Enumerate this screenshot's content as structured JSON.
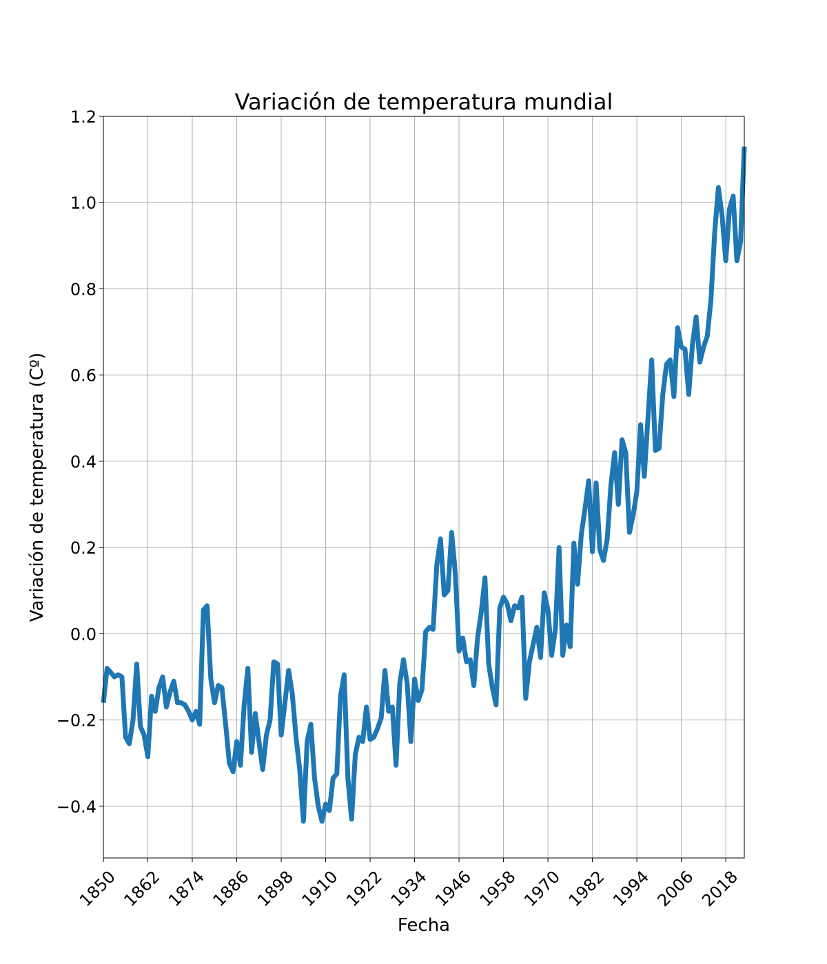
{
  "chart_data": {
    "type": "line",
    "title": "Variación de temperatura mundial",
    "xlabel": "Fecha",
    "ylabel": "Variación de temperatura (Cº)",
    "xlim": [
      1850,
      2023
    ],
    "ylim": [
      -0.52,
      1.2
    ],
    "grid": true,
    "legend": "none",
    "colors": {
      "line": "#1f77b4",
      "grid": "#b0b0b0",
      "frame": "#000000"
    },
    "x_ticks": [
      1850,
      1862,
      1874,
      1886,
      1898,
      1910,
      1922,
      1934,
      1946,
      1958,
      1970,
      1982,
      1994,
      2006,
      2018
    ],
    "y_ticks": [
      -0.4,
      -0.2,
      0.0,
      0.2,
      0.4,
      0.6,
      0.8,
      1.0,
      1.2
    ],
    "y_tick_labels": [
      "−0.4",
      "−0.2",
      "0.0",
      "0.2",
      "0.4",
      "0.6",
      "0.8",
      "1.0",
      "1.2"
    ],
    "series": [
      {
        "x": [
          1850,
          1851,
          1852,
          1853,
          1854,
          1855,
          1856,
          1857,
          1858,
          1859,
          1860,
          1861,
          1862,
          1863,
          1864,
          1865,
          1866,
          1867,
          1868,
          1869,
          1870,
          1871,
          1872,
          1873,
          1874,
          1875,
          1876,
          1877,
          1878,
          1879,
          1880,
          1881,
          1882,
          1883,
          1884,
          1885,
          1886,
          1887,
          1888,
          1889,
          1890,
          1891,
          1892,
          1893,
          1894,
          1895,
          1896,
          1897,
          1898,
          1899,
          1900,
          1901,
          1902,
          1903,
          1904,
          1905,
          1906,
          1907,
          1908,
          1909,
          1910,
          1911,
          1912,
          1913,
          1914,
          1915,
          1916,
          1917,
          1918,
          1919,
          1920,
          1921,
          1922,
          1923,
          1924,
          1925,
          1926,
          1927,
          1928,
          1929,
          1930,
          1931,
          1932,
          1933,
          1934,
          1935,
          1936,
          1937,
          1938,
          1939,
          1940,
          1941,
          1942,
          1943,
          1944,
          1945,
          1946,
          1947,
          1948,
          1949,
          1950,
          1951,
          1952,
          1953,
          1954,
          1955,
          1956,
          1957,
          1958,
          1959,
          1960,
          1961,
          1962,
          1963,
          1964,
          1965,
          1966,
          1967,
          1968,
          1969,
          1970,
          1971,
          1972,
          1973,
          1974,
          1975,
          1976,
          1977,
          1978,
          1979,
          1980,
          1981,
          1982,
          1983,
          1984,
          1985,
          1986,
          1987,
          1988,
          1989,
          1990,
          1991,
          1992,
          1993,
          1994,
          1995,
          1996,
          1997,
          1998,
          1999,
          2000,
          2001,
          2002,
          2003,
          2004,
          2005,
          2006,
          2007,
          2008,
          2009,
          2010,
          2011,
          2012,
          2013,
          2014,
          2015,
          2016,
          2017,
          2018,
          2019,
          2020,
          2021,
          2022,
          2023
        ],
        "y": [
          -0.16,
          -0.08,
          -0.09,
          -0.1,
          -0.095,
          -0.1,
          -0.24,
          -0.255,
          -0.2,
          -0.07,
          -0.215,
          -0.235,
          -0.285,
          -0.145,
          -0.18,
          -0.125,
          -0.1,
          -0.17,
          -0.135,
          -0.11,
          -0.16,
          -0.16,
          -0.165,
          -0.18,
          -0.2,
          -0.18,
          -0.21,
          0.055,
          0.065,
          -0.105,
          -0.16,
          -0.12,
          -0.125,
          -0.21,
          -0.3,
          -0.32,
          -0.25,
          -0.305,
          -0.165,
          -0.08,
          -0.275,
          -0.185,
          -0.25,
          -0.315,
          -0.235,
          -0.2,
          -0.065,
          -0.07,
          -0.235,
          -0.16,
          -0.085,
          -0.14,
          -0.24,
          -0.315,
          -0.435,
          -0.25,
          -0.21,
          -0.335,
          -0.4,
          -0.435,
          -0.395,
          -0.41,
          -0.335,
          -0.325,
          -0.145,
          -0.095,
          -0.335,
          -0.43,
          -0.28,
          -0.24,
          -0.25,
          -0.17,
          -0.245,
          -0.24,
          -0.22,
          -0.195,
          -0.085,
          -0.18,
          -0.17,
          -0.305,
          -0.115,
          -0.06,
          -0.115,
          -0.25,
          -0.105,
          -0.155,
          -0.13,
          0.005,
          0.015,
          0.01,
          0.16,
          0.22,
          0.09,
          0.1,
          0.235,
          0.14,
          -0.04,
          -0.01,
          -0.065,
          -0.06,
          -0.12,
          -0.01,
          0.05,
          0.13,
          -0.07,
          -0.125,
          -0.165,
          0.06,
          0.085,
          0.07,
          0.03,
          0.065,
          0.06,
          0.085,
          -0.15,
          -0.065,
          -0.025,
          0.015,
          -0.055,
          0.095,
          0.055,
          -0.05,
          0.01,
          0.2,
          -0.05,
          0.02,
          -0.03,
          0.21,
          0.115,
          0.23,
          0.29,
          0.355,
          0.19,
          0.35,
          0.195,
          0.17,
          0.22,
          0.345,
          0.42,
          0.3,
          0.45,
          0.42,
          0.235,
          0.275,
          0.33,
          0.485,
          0.365,
          0.5,
          0.635,
          0.425,
          0.43,
          0.555,
          0.625,
          0.635,
          0.55,
          0.71,
          0.665,
          0.66,
          0.555,
          0.67,
          0.735,
          0.63,
          0.665,
          0.69,
          0.775,
          0.93,
          1.035,
          0.97,
          0.865,
          0.985,
          1.015,
          0.865,
          0.91,
          1.13
        ]
      }
    ]
  }
}
